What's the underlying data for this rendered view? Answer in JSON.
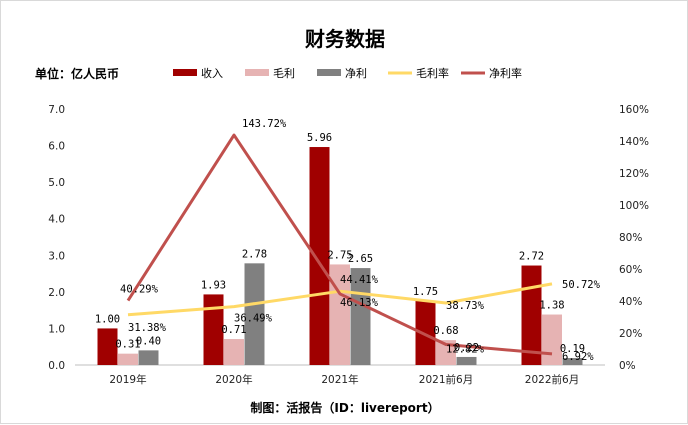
{
  "title": "财务数据",
  "unit_label": "单位：亿人民币",
  "source_note": "制图：活报告（ID：livereport）",
  "chart_data": {
    "type": "bar",
    "categories": [
      "2019年",
      "2020年",
      "2021年",
      "2021前6月",
      "2022前6月"
    ],
    "y_ticks": [
      "0.0",
      "1.0",
      "2.0",
      "3.0",
      "4.0",
      "5.0",
      "6.0",
      "7.0"
    ],
    "y2_ticks": [
      "0%",
      "20%",
      "40%",
      "60%",
      "80%",
      "100%",
      "120%",
      "140%",
      "160%"
    ],
    "ylim": [
      0,
      7
    ],
    "y2lim": [
      0,
      160
    ],
    "legend_position": "top",
    "series": [
      {
        "name": "收入",
        "kind": "bar",
        "axis": "left",
        "color": "#a00000",
        "values": [
          1.0,
          1.93,
          5.96,
          1.75,
          2.72
        ],
        "labels": [
          "1.00",
          "1.93",
          "5.96",
          "1.75",
          "2.72"
        ]
      },
      {
        "name": "毛利",
        "kind": "bar",
        "axis": "left",
        "color": "#e6b3b3",
        "values": [
          0.31,
          0.71,
          2.75,
          0.68,
          1.38
        ],
        "labels": [
          "0.31",
          "0.71",
          "2.75",
          "0.68",
          "1.38"
        ]
      },
      {
        "name": "净利",
        "kind": "bar",
        "axis": "left",
        "color": "#808080",
        "values": [
          0.4,
          2.78,
          2.65,
          0.22,
          0.19
        ],
        "labels": [
          "0.40",
          "2.78",
          "2.65",
          "0.22",
          "0.19"
        ]
      },
      {
        "name": "毛利率",
        "kind": "line",
        "axis": "right",
        "color": "#ffd966",
        "values": [
          31.38,
          36.49,
          46.13,
          38.73,
          50.72
        ],
        "labels": [
          "31.38%",
          "36.49%",
          "46.13%",
          "38.73%",
          "50.72%"
        ]
      },
      {
        "name": "净利率",
        "kind": "line",
        "axis": "right",
        "color": "#c0504d",
        "values": [
          40.29,
          143.72,
          44.41,
          12.82,
          6.92
        ],
        "labels": [
          "40.29%",
          "143.72%",
          "44.41%",
          "12.82%",
          "6.92%"
        ]
      }
    ]
  }
}
